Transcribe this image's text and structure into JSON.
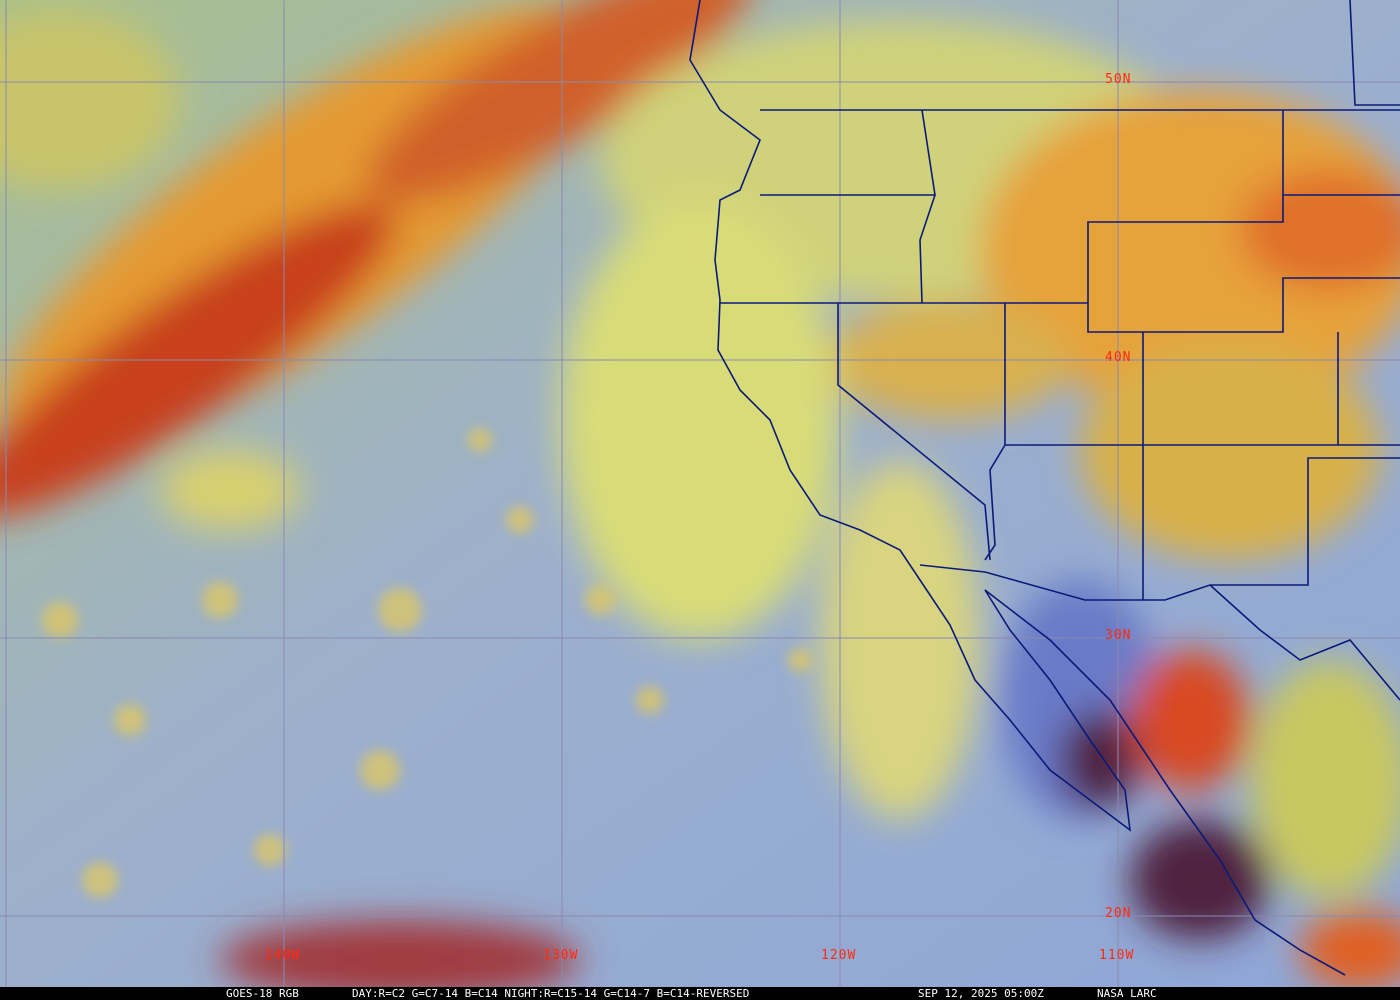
{
  "map": {
    "satellite": "GOES-18",
    "grid": {
      "longitude_labels": [
        "140W",
        "130W",
        "120W",
        "110W"
      ],
      "latitude_labels": [
        "50N",
        "40N",
        "30N",
        "20N"
      ],
      "line_color": "#8a8ab0",
      "label_color": "#ff2a10"
    },
    "boundary_color": "#0a1a7a",
    "palette": {
      "ocean": "#93a9d2",
      "low_cloud": "#d6d36a",
      "high_cloud": "#e89a2a",
      "deep_cloud": "#b83020"
    }
  },
  "caption": {
    "product": "GOES-18 RGB",
    "recipe": "DAY:R=C2 G=C7-14 B=C14 NIGHT:R=C15-14 G=C14-7 B=C14-REVERSED",
    "timestamp": "SEP 12, 2025 05:00Z",
    "source": "NASA LARC"
  }
}
